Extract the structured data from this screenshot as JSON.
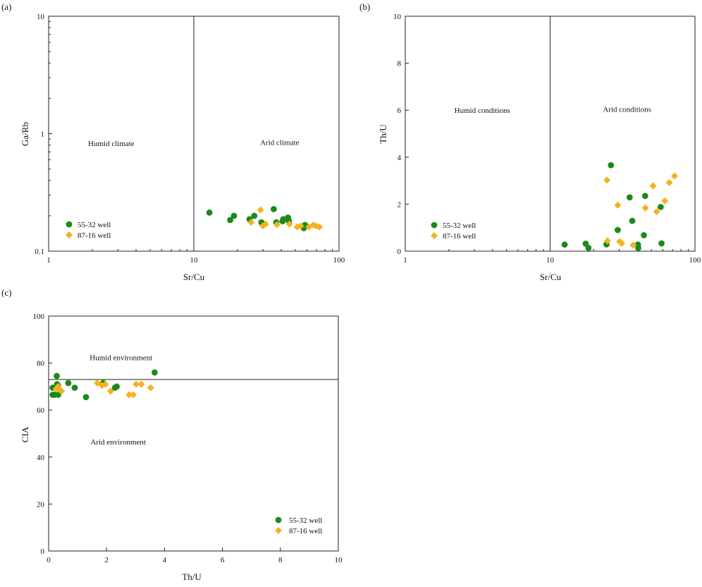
{
  "figure": {
    "colors": {
      "axis": "#222222",
      "green": "#1a8a1a",
      "orange": "#f5b21c"
    },
    "series_names": [
      "55-32 well",
      "87-16 well"
    ]
  },
  "chart_data": [
    {
      "panel": "(a)",
      "type": "scatter",
      "x_scale": "log",
      "y_scale": "log",
      "xlabel": "Sr/Cu",
      "ylabel": "Ga/Rb",
      "xlim": [
        1,
        100
      ],
      "ylim": [
        0.1,
        10
      ],
      "xticks": [
        1,
        10,
        100
      ],
      "yticks": [
        0.1,
        1,
        10
      ],
      "xtick_labels": [
        "1",
        "10",
        "100"
      ],
      "ytick_labels": [
        "0.1",
        "1",
        "10"
      ],
      "divider": {
        "orientation": "vertical",
        "value": 10
      },
      "regions": [
        {
          "label": "Humid climate",
          "x": 2.7,
          "y": 0.83
        },
        {
          "label": "Arid climate",
          "x": 39,
          "y": 0.85
        }
      ],
      "legend": {
        "position": "bottom-left",
        "entries": [
          "55-32 well",
          "87-16 well"
        ]
      },
      "series": [
        {
          "name": "55-32 well",
          "marker": "circle",
          "color": "#1a8a1a",
          "x": [
            12.8,
            17.8,
            18.9,
            24.2,
            26.1,
            29.2,
            35.5,
            37.0,
            40.9,
            41.3,
            44.5,
            45.2,
            57.2,
            58.3
          ],
          "y": [
            0.213,
            0.184,
            0.2,
            0.187,
            0.2,
            0.176,
            0.228,
            0.176,
            0.18,
            0.187,
            0.193,
            0.18,
            0.157,
            0.167
          ]
        },
        {
          "name": "87-16 well",
          "marker": "diamond",
          "color": "#f5b21c",
          "x": [
            24.8,
            28.8,
            29.9,
            31.2,
            37.4,
            45.6,
            51.5,
            54.4,
            62.0,
            66.6,
            69.6,
            73.2
          ],
          "y": [
            0.176,
            0.224,
            0.164,
            0.17,
            0.168,
            0.17,
            0.161,
            0.164,
            0.161,
            0.167,
            0.164,
            0.161
          ]
        }
      ]
    },
    {
      "panel": "(b)",
      "type": "scatter",
      "x_scale": "log",
      "y_scale": "linear",
      "xlabel": "Sr/Cu",
      "ylabel": "Th/U",
      "xlim": [
        1,
        100
      ],
      "ylim": [
        0,
        10
      ],
      "xticks": [
        1,
        10,
        100
      ],
      "yticks": [
        0,
        2,
        4,
        6,
        8,
        10
      ],
      "xtick_labels": [
        "1",
        "10",
        "100"
      ],
      "ytick_labels": [
        "0",
        "2",
        "4",
        "6",
        "8",
        "10"
      ],
      "divider": {
        "orientation": "vertical",
        "value": 10
      },
      "regions": [
        {
          "label": "Humid conditions",
          "x": 3.4,
          "y": 6.0
        },
        {
          "label": "Arid conditions",
          "x": 34,
          "y": 6.05
        }
      ],
      "legend": {
        "position": "bottom-left",
        "entries": [
          "55-32 well",
          "87-16 well"
        ]
      },
      "series": [
        {
          "name": "55-32 well",
          "marker": "circle",
          "color": "#1a8a1a",
          "x": [
            12.6,
            17.6,
            18.4,
            24.5,
            26.3,
            29.3,
            35.4,
            36.9,
            40.4,
            40.6,
            44.4,
            45.3,
            58.0,
            58.8
          ],
          "y": [
            0.28,
            0.32,
            0.14,
            0.29,
            3.66,
            0.9,
            2.29,
            1.29,
            0.28,
            0.14,
            0.68,
            2.35,
            1.88,
            0.33
          ]
        },
        {
          "name": "87-16 well",
          "marker": "diamond",
          "color": "#f5b21c",
          "x": [
            24.7,
            24.9,
            29.3,
            30.2,
            31.2,
            37.4,
            45.5,
            51.4,
            54.4,
            61.9,
            66.5,
            72.3
          ],
          "y": [
            3.02,
            0.44,
            1.96,
            0.41,
            0.33,
            0.26,
            1.84,
            2.78,
            1.68,
            2.14,
            2.92,
            3.2
          ]
        }
      ]
    },
    {
      "panel": "(c)",
      "type": "scatter",
      "x_scale": "linear",
      "y_scale": "linear",
      "xlabel": "Th/U",
      "ylabel": "CIA",
      "xlim": [
        0,
        10
      ],
      "ylim": [
        0,
        100
      ],
      "xticks": [
        0,
        2,
        4,
        6,
        8,
        10
      ],
      "yticks": [
        0,
        20,
        40,
        60,
        80,
        100
      ],
      "xtick_labels": [
        "0",
        "2",
        "4",
        "6",
        "8",
        "10"
      ],
      "ytick_labels": [
        "0",
        "20",
        "40",
        "60",
        "80",
        "100"
      ],
      "divider": {
        "orientation": "horizontal",
        "value": 73
      },
      "regions": [
        {
          "label": "Humid environment",
          "x": 2.5,
          "y": 82.5
        },
        {
          "label": "Arid environment",
          "x": 2.4,
          "y": 46.5
        }
      ],
      "legend": {
        "position": "bottom-right",
        "entries": [
          "55-32 well",
          "87-16 well"
        ]
      },
      "series": [
        {
          "name": "55-32 well",
          "marker": "circle",
          "color": "#1a8a1a",
          "x": [
            0.14,
            0.2,
            0.28,
            0.32,
            0.33,
            0.68,
            0.9,
            1.29,
            1.88,
            2.29,
            2.35,
            3.66,
            0.14,
            0.29
          ],
          "y": [
            69.5,
            66.5,
            74.5,
            70.5,
            66.5,
            71.5,
            69.5,
            65.5,
            71.5,
            69.5,
            70.0,
            76.0,
            66.5,
            71.0
          ]
        },
        {
          "name": "87-16 well",
          "marker": "diamond",
          "color": "#f5b21c",
          "x": [
            0.26,
            0.33,
            0.41,
            0.44,
            1.68,
            1.84,
            1.96,
            2.14,
            2.78,
            2.92,
            3.02,
            3.2,
            3.52
          ],
          "y": [
            69.0,
            70.0,
            68.5,
            68.0,
            71.5,
            70.5,
            71.0,
            68.0,
            66.5,
            66.5,
            71.0,
            71.0,
            69.5
          ]
        }
      ]
    }
  ]
}
